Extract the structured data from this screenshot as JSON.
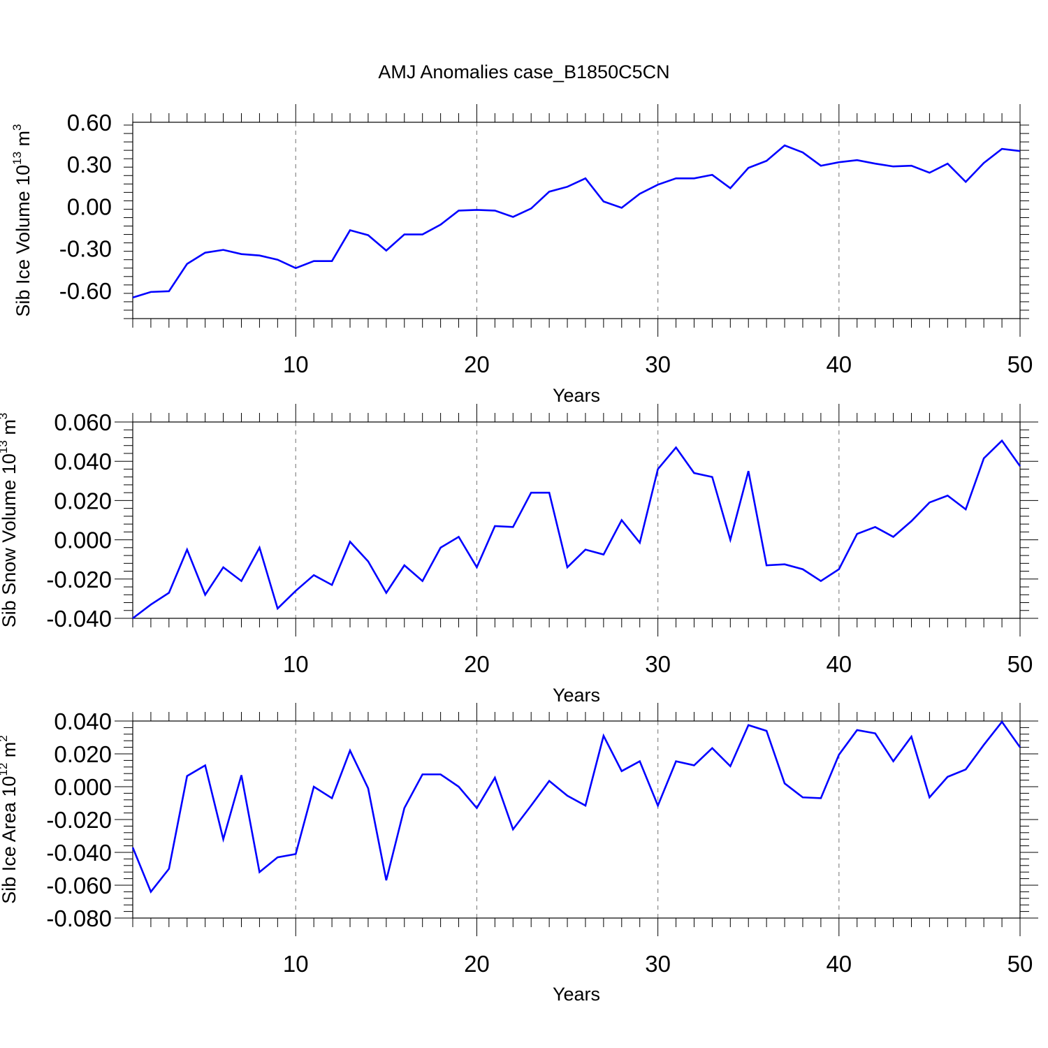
{
  "title": "AMJ Anomalies case_B1850C5CN",
  "colors": {
    "line": "#0000ff",
    "axis": "#000000",
    "grid": "#888888"
  },
  "chart_data": [
    {
      "type": "line",
      "title": "AMJ Anomalies case_B1850C5CN",
      "ylabel": "Sib Ice Volume",
      "yunit_base": "10",
      "yunit_exp": "13",
      "yunit_text": "m",
      "yunit_pow": "3",
      "xlabel": "Years",
      "xlim": [
        1,
        50
      ],
      "ylim": [
        -0.8,
        0.6
      ],
      "yticks": [
        -0.6,
        -0.3,
        0.0,
        0.3,
        0.6
      ],
      "ytick_labels": [
        "-0.60",
        "-0.30",
        "0.00",
        "0.30",
        "0.60"
      ],
      "xticks": [
        10,
        20,
        30,
        40,
        50
      ],
      "xtick_labels": [
        "10",
        "20",
        "30",
        "40",
        "50"
      ],
      "grid_x": true,
      "series": [
        {
          "values": [
            -0.65,
            -0.61,
            -0.605,
            -0.41,
            -0.33,
            -0.31,
            -0.34,
            -0.35,
            -0.38,
            -0.44,
            -0.39,
            -0.39,
            -0.17,
            -0.205,
            -0.315,
            -0.2,
            -0.2,
            -0.13,
            -0.03,
            -0.025,
            -0.03,
            -0.075,
            -0.015,
            0.105,
            0.14,
            0.2,
            0.035,
            -0.01,
            0.09,
            0.155,
            0.2,
            0.2,
            0.225,
            0.13,
            0.275,
            0.325,
            0.435,
            0.385,
            0.29,
            0.315,
            0.33,
            0.305,
            0.285,
            0.29,
            0.24,
            0.305,
            0.175,
            0.31,
            0.41,
            0.395
          ]
        }
      ]
    },
    {
      "type": "line",
      "ylabel": "Sib Snow Volume",
      "yunit_base": "10",
      "yunit_exp": "13",
      "yunit_text": "m",
      "yunit_pow": "3",
      "xlabel": "Years",
      "xlim": [
        1,
        50
      ],
      "ylim": [
        -0.04,
        0.06
      ],
      "yticks": [
        -0.04,
        -0.02,
        0.0,
        0.02,
        0.04,
        0.06
      ],
      "ytick_labels": [
        "-0.040",
        "-0.020",
        "0.000",
        "0.020",
        "0.040",
        "0.060"
      ],
      "xticks": [
        10,
        20,
        30,
        40,
        50
      ],
      "xtick_labels": [
        "10",
        "20",
        "30",
        "40",
        "50"
      ],
      "grid_x": true,
      "series": [
        {
          "values": [
            -0.04,
            -0.033,
            -0.027,
            -0.005,
            -0.028,
            -0.014,
            -0.021,
            -0.004,
            -0.035,
            -0.026,
            -0.018,
            -0.023,
            -0.001,
            -0.011,
            -0.027,
            -0.013,
            -0.021,
            -0.004,
            0.0015,
            -0.014,
            0.007,
            0.0065,
            0.024,
            0.024,
            -0.014,
            -0.005,
            -0.0075,
            0.01,
            -0.0015,
            0.036,
            0.047,
            0.034,
            0.032,
            0.0,
            0.035,
            -0.013,
            -0.0125,
            -0.015,
            -0.021,
            -0.015,
            0.003,
            0.0065,
            0.0015,
            0.0095,
            0.019,
            0.0225,
            0.0155,
            0.0415,
            0.0505,
            0.0375
          ]
        }
      ]
    },
    {
      "type": "line",
      "ylabel": "Sib Ice Area",
      "yunit_base": "10",
      "yunit_exp": "12",
      "yunit_text": "m",
      "yunit_pow": "2",
      "xlabel": "Years",
      "xlim": [
        1,
        50
      ],
      "ylim": [
        -0.08,
        0.04
      ],
      "yticks": [
        -0.08,
        -0.06,
        -0.04,
        -0.02,
        0.0,
        0.02,
        0.04
      ],
      "ytick_labels": [
        "-0.080",
        "-0.060",
        "-0.040",
        "-0.020",
        "0.000",
        "0.020",
        "0.040"
      ],
      "xticks": [
        10,
        20,
        30,
        40,
        50
      ],
      "xtick_labels": [
        "10",
        "20",
        "30",
        "40",
        "50"
      ],
      "grid_x": true,
      "series": [
        {
          "values": [
            -0.037,
            -0.064,
            -0.05,
            0.0065,
            0.013,
            -0.032,
            0.007,
            -0.052,
            -0.043,
            -0.041,
            0.0,
            -0.007,
            0.022,
            -0.001,
            -0.057,
            -0.013,
            0.0075,
            0.0075,
            0.0,
            -0.013,
            0.0055,
            -0.026,
            -0.0115,
            0.0035,
            -0.0055,
            -0.0115,
            0.031,
            0.0095,
            0.0155,
            -0.0115,
            0.0155,
            0.013,
            0.0235,
            0.0125,
            0.0375,
            0.034,
            0.002,
            -0.0065,
            -0.007,
            0.0195,
            0.0345,
            0.0325,
            0.0155,
            0.0305,
            -0.0065,
            0.006,
            0.0105,
            0.0255,
            0.0395,
            0.024
          ]
        }
      ]
    }
  ]
}
